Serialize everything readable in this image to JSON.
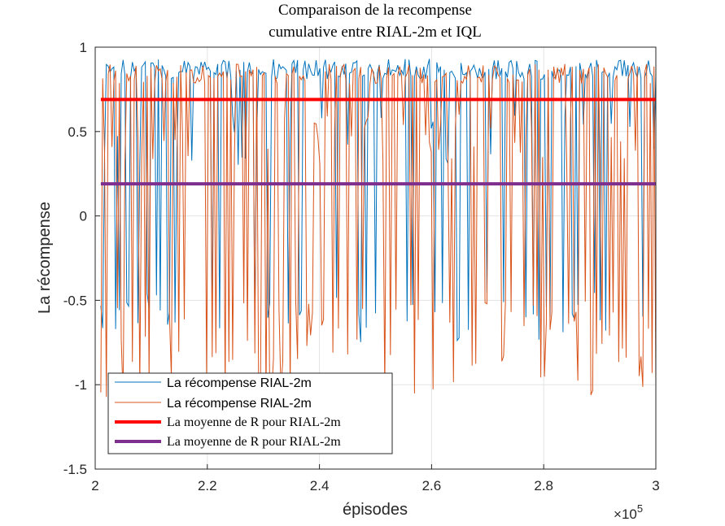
{
  "chart_data": {
    "type": "line",
    "title_lines": [
      "Comparaison de la recompense",
      "cumulative entre RIAL-2m et IQL"
    ],
    "xlabel": "épisodes",
    "ylabel": "La récompense",
    "xlim": [
      200000,
      300000
    ],
    "ylim": [
      -1.5,
      1
    ],
    "x_scale_base": "10",
    "x_scale_exp": "5",
    "x_ticks": [
      200000,
      220000,
      240000,
      260000,
      280000,
      300000
    ],
    "x_tick_labels": [
      "2",
      "2.2",
      "2.4",
      "2.6",
      "2.8",
      "3"
    ],
    "y_ticks": [
      1,
      0.5,
      0,
      -0.5,
      -1,
      -1.5
    ],
    "y_tick_labels": [
      "1",
      "0.5",
      "0",
      "-0.5",
      "-1",
      "-1.5"
    ],
    "grid": true,
    "legend_position": "bottom-left",
    "series": [
      {
        "name": "La récompense RIAL-2m",
        "kind": "noisy",
        "color": "#0072BD",
        "x_start": 201000,
        "x_end": 300000,
        "points": 300,
        "seed": 11,
        "high": 0.93,
        "low_prob": 0.28
      },
      {
        "name": "La récompense RIAL-2m",
        "kind": "noisy",
        "color": "#D95319",
        "x_start": 201000,
        "x_end": 300000,
        "points": 300,
        "seed": 29,
        "high": 0.9,
        "low_prob": 0.5
      },
      {
        "name": "La moyenne de R pour RIAL-2m",
        "kind": "hline",
        "color": "#FF0000",
        "y": 0.69,
        "x_start": 201000,
        "x_end": 300000
      },
      {
        "name": "La moyenne de R pour RIAL-2m",
        "kind": "hline",
        "color": "#7E2F8E",
        "y": 0.19,
        "x_start": 201000,
        "x_end": 300000
      }
    ]
  }
}
